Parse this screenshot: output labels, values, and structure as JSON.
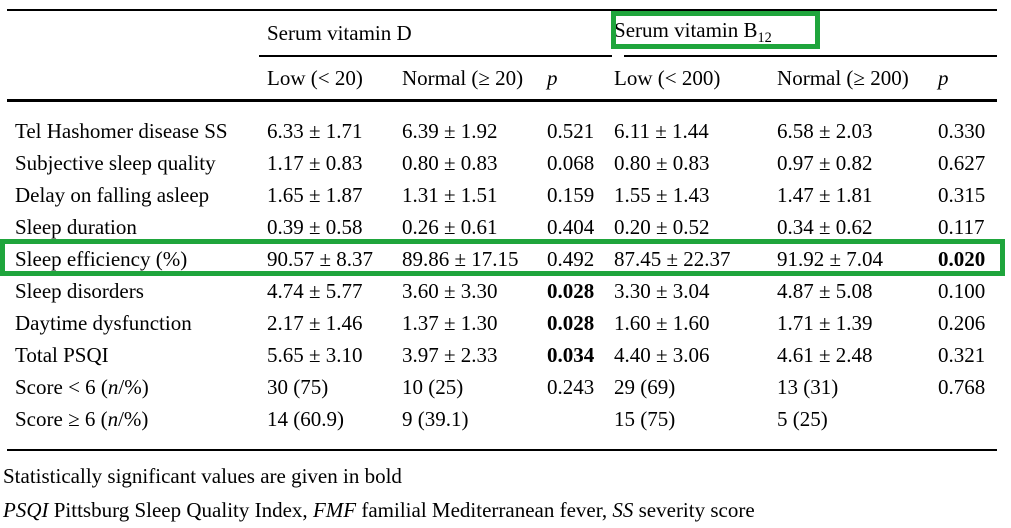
{
  "annotations": {
    "color": "#1fa53c",
    "boxes": [
      "vitamin-b12-column-group",
      "sleep-efficiency-row"
    ]
  },
  "columns": {
    "groups": [
      {
        "title": "Serum vitamin D",
        "sub": ""
      },
      {
        "title": "Serum vitamin B",
        "sub": "12"
      }
    ],
    "subheaders": [
      "Low (< 20)",
      "Normal (≥ 20)",
      "p",
      "Low (< 200)",
      "Normal (≥ 200)",
      "p"
    ]
  },
  "rows": [
    {
      "label": "Tel Hashomer disease SS",
      "cells": [
        "6.33 ± 1.71",
        "6.39 ± 1.92",
        "0.521",
        "6.11 ± 1.44",
        "6.58 ± 2.03",
        "0.330"
      ],
      "bold": [],
      "highlighted": false
    },
    {
      "label": "Subjective sleep quality",
      "cells": [
        "1.17 ± 0.83",
        "0.80 ± 0.83",
        "0.068",
        "0.80 ± 0.83",
        "0.97 ± 0.82",
        "0.627"
      ],
      "bold": [],
      "highlighted": false
    },
    {
      "label": "Delay on falling asleep",
      "cells": [
        "1.65 ± 1.87",
        "1.31 ± 1.51",
        "0.159",
        "1.55 ± 1.43",
        "1.47 ± 1.81",
        "0.315"
      ],
      "bold": [],
      "highlighted": false
    },
    {
      "label": "Sleep duration",
      "cells": [
        "0.39 ± 0.58",
        "0.26 ± 0.61",
        "0.404",
        "0.20 ± 0.52",
        "0.34 ± 0.62",
        "0.117"
      ],
      "bold": [],
      "highlighted": false
    },
    {
      "label": "Sleep efficiency (%)",
      "cells": [
        "90.57 ± 8.37",
        "89.86 ± 17.15",
        "0.492",
        "87.45 ± 22.37",
        "91.92 ± 7.04",
        "0.020"
      ],
      "bold": [
        5
      ],
      "highlighted": true
    },
    {
      "label": "Sleep disorders",
      "cells": [
        "4.74 ± 5.77",
        "3.60 ± 3.30",
        "0.028",
        "3.30 ± 3.04",
        "4.87 ± 5.08",
        "0.100"
      ],
      "bold": [
        2
      ],
      "highlighted": false
    },
    {
      "label": "Daytime dysfunction",
      "cells": [
        "2.17 ± 1.46",
        "1.37 ± 1.30",
        "0.028",
        "1.60 ± 1.60",
        "1.71 ± 1.39",
        "0.206"
      ],
      "bold": [
        2
      ],
      "highlighted": false
    },
    {
      "label": "Total PSQI",
      "cells": [
        "5.65 ± 3.10",
        "3.97 ± 2.33",
        "0.034",
        "4.40 ± 3.06",
        "4.61 ± 2.48",
        "0.321"
      ],
      "bold": [
        2
      ],
      "highlighted": false
    },
    {
      "label": "Score < 6 ({i}n{/i}/%)",
      "cells": [
        "30 (75)",
        "10 (25)",
        "0.243",
        "29 (69)",
        "13 (31)",
        "0.768"
      ],
      "bold": [],
      "highlighted": false
    },
    {
      "label": "Score ≥ 6 ({i}n{/i}/%)",
      "cells": [
        "14 (60.9)",
        "9 (39.1)",
        "",
        "15 (75)",
        "5 (25)",
        ""
      ],
      "bold": [],
      "highlighted": false
    }
  ],
  "footnotes": [
    "Statistically significant values are given in bold",
    "{i}PSQI{/i} Pittsburg Sleep Quality Index, {i}FMF{/i} familial Mediterranean fever, {i}SS{/i} severity score"
  ]
}
